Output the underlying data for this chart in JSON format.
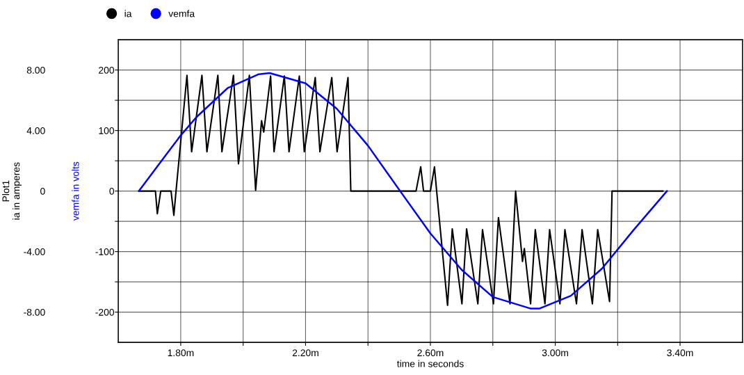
{
  "chart_data": {
    "type": "line",
    "ylabel": "Plot1\nia in amperes",
    "y2label": "vemfa in volts",
    "xlabel": "time in seconds",
    "xlim": [
      1.6,
      3.6
    ],
    "xticks": [
      {
        "value": 1.8,
        "label": "1.80m"
      },
      {
        "value": 2.0,
        "label": null
      },
      {
        "value": 2.2,
        "label": "2.20m"
      },
      {
        "value": 2.4,
        "label": null
      },
      {
        "value": 2.6,
        "label": "2.60m"
      },
      {
        "value": 2.8,
        "label": null
      },
      {
        "value": 3.0,
        "label": "3.00m"
      },
      {
        "value": 3.2,
        "label": null
      },
      {
        "value": 3.4,
        "label": "3.40m"
      }
    ],
    "ylim": [
      -10,
      10
    ],
    "yticks": [
      {
        "value": -8,
        "label": "-8.00"
      },
      {
        "value": -6,
        "label": null
      },
      {
        "value": -4,
        "label": "-4.00"
      },
      {
        "value": -2,
        "label": null
      },
      {
        "value": 0,
        "label": "0"
      },
      {
        "value": 2,
        "label": null
      },
      {
        "value": 4,
        "label": "4.00"
      },
      {
        "value": 6,
        "label": null
      },
      {
        "value": 8,
        "label": "8.00"
      }
    ],
    "y2lim": [
      -250,
      250
    ],
    "y2ticks": [
      -200,
      -100,
      0,
      100,
      200
    ],
    "grid": true,
    "legend": "top left",
    "marker": "none",
    "line_style": "solid",
    "series": [
      {
        "name": "ia",
        "color": "#000000",
        "x": [
          1.666,
          1.719,
          1.725,
          1.736,
          1.769,
          1.778,
          1.785,
          1.82,
          1.835,
          1.868,
          1.884,
          1.919,
          1.932,
          1.969,
          1.985,
          2.02,
          2.04,
          2.059,
          2.066,
          2.088,
          2.099,
          2.132,
          2.147,
          2.18,
          2.196,
          2.231,
          2.246,
          2.284,
          2.301,
          2.336,
          2.345,
          2.554,
          2.569,
          2.578,
          2.6,
          2.613,
          2.62,
          2.655,
          2.67,
          2.701,
          2.716,
          2.752,
          2.767,
          2.802,
          2.818,
          2.855,
          2.873,
          2.895,
          2.901,
          2.921,
          2.936,
          2.967,
          2.982,
          3.015,
          3.031,
          3.068,
          3.086,
          3.119,
          3.136,
          3.174,
          3.182,
          3.345
        ],
        "values": [
          0,
          0,
          -1.5,
          0,
          0,
          -1.6,
          0,
          7.65,
          2.6,
          7.65,
          2.6,
          7.65,
          2.6,
          7.65,
          1.8,
          7.65,
          0.05,
          4.65,
          3.9,
          7.6,
          2.6,
          7.6,
          2.6,
          7.6,
          2.6,
          7.5,
          2.6,
          7.5,
          2.6,
          7.5,
          0,
          0,
          1.6,
          0,
          0,
          1.6,
          0,
          -7.55,
          -2.5,
          -7.45,
          -2.5,
          -7.45,
          -2.55,
          -7.45,
          -1.75,
          -7.45,
          0,
          -4.65,
          -3.8,
          -7.45,
          -2.55,
          -7.45,
          -2.55,
          -7.45,
          -2.55,
          -7.45,
          -2.55,
          -7.45,
          -2.55,
          -7.3,
          0,
          0
        ]
      },
      {
        "name": "vemfa",
        "color": "#0000ff",
        "axis": "y2",
        "x": [
          1.666,
          1.75,
          1.8,
          1.85,
          1.95,
          2.05,
          2.085,
          2.2,
          2.3,
          2.4,
          2.503,
          2.6,
          2.7,
          2.8,
          2.92,
          2.95,
          3.05,
          3.15,
          3.25,
          3.358
        ],
        "values": [
          0,
          58,
          92,
          122,
          170,
          193,
          195,
          178,
          136,
          75,
          0,
          -70,
          -130,
          -175,
          -194,
          -194,
          -173,
          -128,
          -65,
          0
        ]
      }
    ]
  }
}
